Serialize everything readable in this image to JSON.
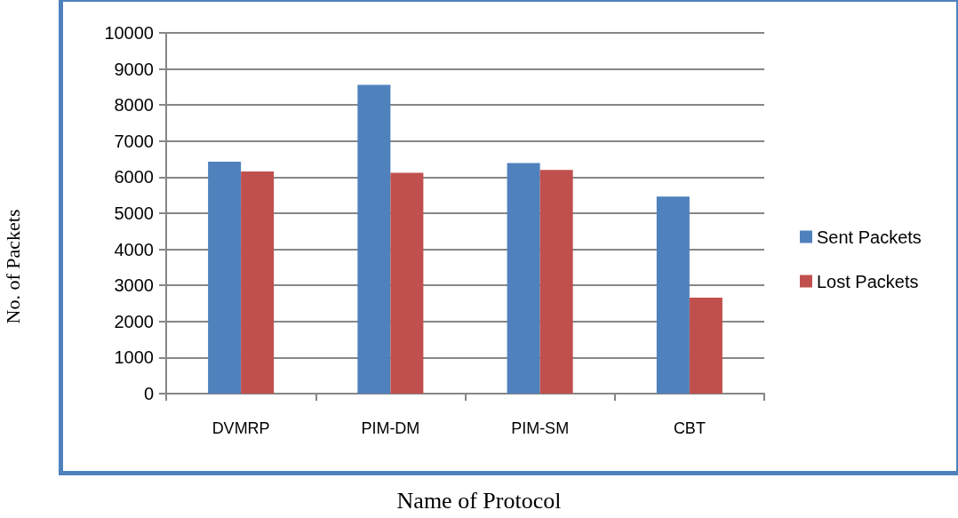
{
  "chart_data": {
    "type": "bar",
    "xlabel": "Name of Protocol",
    "ylabel": "No. of Packets",
    "categories": [
      "DVMRP",
      "PIM-DM",
      "PIM-SM",
      "CBT"
    ],
    "series": [
      {
        "name": "Sent Packets",
        "color": "#4f81bd",
        "values": [
          6430,
          8560,
          6390,
          5460
        ]
      },
      {
        "name": "Lost Packets",
        "color": "#c0504d",
        "values": [
          6160,
          6120,
          6200,
          2660
        ]
      }
    ],
    "ylim": [
      0,
      10000
    ],
    "yticks": [
      0,
      1000,
      2000,
      3000,
      4000,
      5000,
      6000,
      7000,
      8000,
      9000,
      10000
    ],
    "grid": "y",
    "legend": "right"
  }
}
